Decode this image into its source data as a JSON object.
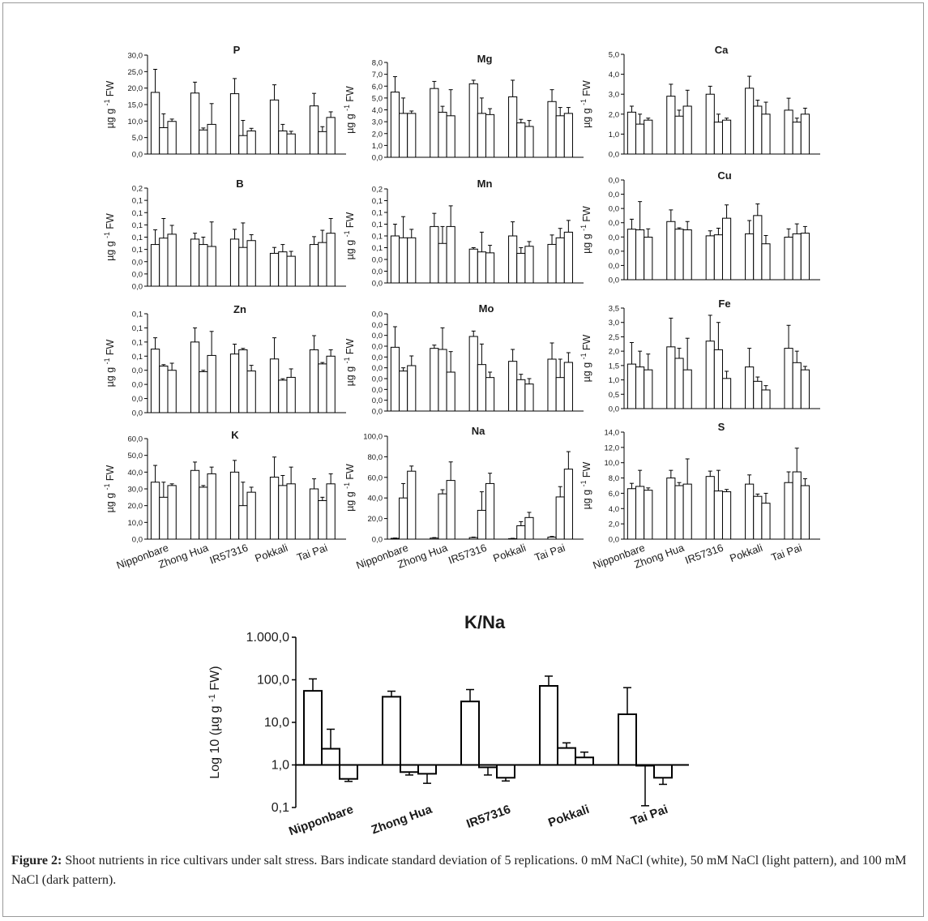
{
  "figure": {
    "caption_lead": "Figure 2:",
    "caption_text": " Shoot nutrients in rice cultivars under salt stress. Bars indicate standard deviation of 5 replications. 0 mM NaCl (white), 50 mM NaCl (light pattern), and 100 mM NaCl (dark pattern)."
  },
  "colors": {
    "bar_fill": "#ffffff",
    "bar_stroke": "#000000",
    "axis": "#000000"
  },
  "chart_data": [
    {
      "type": "bar",
      "title": "P",
      "ylabel": "µg g-1 FW",
      "ylim": [
        0,
        30
      ],
      "yticks": [
        "0,0",
        "5,0",
        "10,0",
        "15,0",
        "20,0",
        "25,0",
        "30,0"
      ],
      "categories": [
        "Nipponbare",
        "Zhong Hua",
        "IR57316",
        "Pokkali",
        "Tai Pai"
      ],
      "series": [
        {
          "values": [
            18.7,
            18.5,
            18.3,
            16.4,
            14.6
          ],
          "err": [
            7.0,
            3.3,
            4.6,
            4.6,
            3.8
          ]
        },
        {
          "values": [
            8.0,
            7.3,
            5.6,
            7.0,
            6.8
          ],
          "err": [
            4.2,
            0.6,
            4.6,
            2.0,
            1.5
          ]
        },
        {
          "values": [
            9.9,
            9.0,
            7.0,
            6.1,
            11.1
          ],
          "err": [
            0.7,
            6.3,
            0.8,
            0.8,
            1.7
          ]
        }
      ]
    },
    {
      "type": "bar",
      "title": "Mg",
      "ylabel": "µg g-1 FW",
      "ylim": [
        0,
        8
      ],
      "yticks": [
        "0,0",
        "1,0",
        "2,0",
        "3,0",
        "4,0",
        "5,0",
        "6,0",
        "7,0",
        "8,0"
      ],
      "categories": [
        "Nipponbare",
        "Zhong Hua",
        "IR57316",
        "Pokkali",
        "Tai Pai"
      ],
      "series": [
        {
          "values": [
            5.5,
            5.8,
            6.2,
            5.1,
            4.7
          ],
          "err": [
            1.3,
            0.6,
            0.3,
            1.4,
            1.0
          ]
        },
        {
          "values": [
            3.7,
            3.8,
            3.7,
            2.9,
            3.5
          ],
          "err": [
            1.3,
            0.5,
            1.3,
            0.3,
            0.7
          ]
        },
        {
          "values": [
            3.7,
            3.5,
            3.6,
            2.6,
            3.7
          ],
          "err": [
            0.2,
            2.2,
            0.5,
            0.5,
            0.5
          ]
        }
      ]
    },
    {
      "type": "bar",
      "title": "Ca",
      "ylabel": "µg g-1 FW",
      "ylim": [
        0,
        5
      ],
      "yticks": [
        "0,0",
        "1,0",
        "2,0",
        "3,0",
        "4,0",
        "5,0"
      ],
      "categories": [
        "Nipponbare",
        "Zhong Hua",
        "IR57316",
        "Pokkali",
        "Tai Pai"
      ],
      "series": [
        {
          "values": [
            2.1,
            2.9,
            3.0,
            3.3,
            2.2
          ],
          "err": [
            0.3,
            0.6,
            0.4,
            0.6,
            0.6
          ]
        },
        {
          "values": [
            1.5,
            1.9,
            1.6,
            2.4,
            1.6
          ],
          "err": [
            0.5,
            0.3,
            0.4,
            0.3,
            0.2
          ]
        },
        {
          "values": [
            1.7,
            2.4,
            1.7,
            2.0,
            2.0
          ],
          "err": [
            0.1,
            0.8,
            0.1,
            0.6,
            0.3
          ]
        }
      ]
    },
    {
      "type": "bar",
      "title": "B",
      "ylabel": "µg g-1 FW",
      "ylim": [
        0,
        0.2
      ],
      "yticks": [
        "0,0",
        "0,0",
        "0,0",
        "0,1",
        "0,1",
        "0,1",
        "0,1",
        "0,1",
        "0,2"
      ],
      "categories": [
        "Nipponbare",
        "Zhong Hua",
        "IR57316",
        "Pokkali",
        "Tai Pai"
      ],
      "series": [
        {
          "values": [
            0.085,
            0.096,
            0.096,
            0.067,
            0.085
          ],
          "err": [
            0.03,
            0.012,
            0.02,
            0.012,
            0.016
          ]
        },
        {
          "values": [
            0.098,
            0.085,
            0.079,
            0.07,
            0.089
          ],
          "err": [
            0.04,
            0.015,
            0.05,
            0.015,
            0.025
          ]
        },
        {
          "values": [
            0.106,
            0.081,
            0.093,
            0.061,
            0.108
          ],
          "err": [
            0.018,
            0.05,
            0.012,
            0.01,
            0.03
          ]
        }
      ]
    },
    {
      "type": "bar",
      "title": "Mn",
      "ylabel": "µg g-1 FW",
      "ylim": [
        0,
        0.2
      ],
      "yticks": [
        "0,0",
        "0,0",
        "0,0",
        "0,1",
        "0,1",
        "0,1",
        "0,1",
        "0,1",
        "0,2"
      ],
      "categories": [
        "Nipponbare",
        "Zhong Hua",
        "IR57316",
        "Pokkali",
        "Tai Pai"
      ],
      "series": [
        {
          "values": [
            0.1,
            0.12,
            0.072,
            0.1,
            0.082
          ],
          "err": [
            0.025,
            0.028,
            0.003,
            0.03,
            0.02
          ]
        },
        {
          "values": [
            0.096,
            0.084,
            0.066,
            0.063,
            0.096
          ],
          "err": [
            0.045,
            0.036,
            0.042,
            0.012,
            0.02
          ]
        },
        {
          "values": [
            0.096,
            0.12,
            0.064,
            0.078,
            0.108
          ],
          "err": [
            0.018,
            0.044,
            0.016,
            0.01,
            0.025
          ]
        }
      ]
    },
    {
      "type": "bar",
      "title": "Cu",
      "ylabel": "µg g-1 FW",
      "ylim": [
        0,
        0.03
      ],
      "yticks": [
        "0,0",
        "0,0",
        "0,0",
        "0,0",
        "0,0",
        "0,0",
        "0,0",
        "0,0"
      ],
      "categories": [
        "Nipponbare",
        "Zhong Hua",
        "IR57316",
        "Pokkali",
        "Tai Pai"
      ],
      "series": [
        {
          "values": [
            0.0152,
            0.0175,
            0.0132,
            0.0138,
            0.0128
          ],
          "err": [
            0.003,
            0.0035,
            0.0015,
            0.004,
            0.0025
          ]
        },
        {
          "values": [
            0.015,
            0.0152,
            0.0135,
            0.0193,
            0.0138
          ],
          "err": [
            0.0085,
            0.0004,
            0.002,
            0.0035,
            0.003
          ]
        },
        {
          "values": [
            0.0128,
            0.015,
            0.0185,
            0.0108,
            0.014
          ],
          "err": [
            0.0025,
            0.0025,
            0.004,
            0.0025,
            0.002
          ]
        }
      ]
    },
    {
      "type": "bar",
      "title": "Zn",
      "ylabel": "µg g-1 FW",
      "ylim": [
        0,
        0.14
      ],
      "yticks": [
        "0,0",
        "0,0",
        "0,0",
        "0,0",
        "0,1",
        "0,1",
        "0,1",
        "0,1"
      ],
      "categories": [
        "Nipponbare",
        "Zhong Hua",
        "IR57316",
        "Pokkali",
        "Tai Pai"
      ],
      "series": [
        {
          "values": [
            0.09,
            0.1,
            0.083,
            0.076,
            0.089
          ],
          "err": [
            0.016,
            0.02,
            0.014,
            0.03,
            0.02
          ]
        },
        {
          "values": [
            0.066,
            0.058,
            0.089,
            0.046,
            0.069
          ],
          "err": [
            0.002,
            0.002,
            0.002,
            0.002,
            0.002
          ]
        },
        {
          "values": [
            0.06,
            0.081,
            0.059,
            0.05,
            0.08
          ],
          "err": [
            0.01,
            0.034,
            0.008,
            0.012,
            0.009
          ]
        }
      ]
    },
    {
      "type": "bar",
      "title": "Mo",
      "ylabel": "µg g-1 FW",
      "ylim": [
        0,
        0.009
      ],
      "yticks": [
        "0,0",
        "0,0",
        "0,0",
        "0,0",
        "0,0",
        "0,0",
        "0,0",
        "0,0",
        "0,0",
        "0,0"
      ],
      "categories": [
        "Nipponbare",
        "Zhong Hua",
        "IR57316",
        "Pokkali",
        "Tai Pai"
      ],
      "series": [
        {
          "values": [
            0.0059,
            0.0058,
            0.0069,
            0.0046,
            0.0048
          ],
          "err": [
            0.0019,
            0.0003,
            0.0005,
            0.0011,
            0.0015
          ]
        },
        {
          "values": [
            0.0037,
            0.0057,
            0.0043,
            0.0029,
            0.0031
          ],
          "err": [
            0.0003,
            0.002,
            0.0019,
            0.0005,
            0.0017
          ]
        },
        {
          "values": [
            0.0042,
            0.0036,
            0.0031,
            0.0025,
            0.0045
          ],
          "err": [
            0.0009,
            0.0019,
            0.0005,
            0.0005,
            0.0009
          ]
        }
      ]
    },
    {
      "type": "bar",
      "title": "Fe",
      "ylabel": "µg g-1 FW",
      "ylim": [
        0,
        3.5
      ],
      "yticks": [
        "0,0",
        "0,5",
        "1,0",
        "1,5",
        "2,0",
        "2,5",
        "3,0",
        "3,5"
      ],
      "categories": [
        "Nipponbare",
        "Zhong Hua",
        "IR57316",
        "Pokkali",
        "Tai Pai"
      ],
      "series": [
        {
          "values": [
            1.55,
            2.15,
            2.35,
            1.45,
            2.1
          ],
          "err": [
            0.75,
            1.0,
            0.9,
            0.65,
            0.8
          ]
        },
        {
          "values": [
            1.45,
            1.75,
            2.05,
            0.95,
            1.6
          ],
          "err": [
            0.55,
            0.35,
            0.95,
            0.15,
            0.4
          ]
        },
        {
          "values": [
            1.35,
            1.35,
            1.05,
            0.65,
            1.35
          ],
          "err": [
            0.55,
            1.1,
            0.25,
            0.15,
            0.12
          ]
        }
      ]
    },
    {
      "type": "bar",
      "title": "K",
      "ylabel": "µg g-1 FW",
      "ylim": [
        0,
        60
      ],
      "yticks": [
        "0,0",
        "10,0",
        "20,0",
        "30,0",
        "40,0",
        "50,0",
        "60,0"
      ],
      "categories": [
        "Nipponbare",
        "Zhong Hua",
        "IR57316",
        "Pokkali",
        "Tai Pai"
      ],
      "series": [
        {
          "values": [
            34,
            41,
            40,
            37,
            30
          ],
          "err": [
            10,
            5,
            7,
            12,
            6
          ]
        },
        {
          "values": [
            25,
            31,
            20,
            32,
            23
          ],
          "err": [
            9,
            1,
            14,
            6,
            2
          ]
        },
        {
          "values": [
            32,
            39,
            28,
            33,
            33
          ],
          "err": [
            1,
            4,
            3,
            10,
            6
          ]
        }
      ]
    },
    {
      "type": "bar",
      "title": "Na",
      "ylabel": "µg g-1 FW",
      "ylim": [
        0,
        100
      ],
      "yticks": [
        "0,0",
        "20,0",
        "40,0",
        "60,0",
        "80,0",
        "100,0"
      ],
      "categories": [
        "Nipponbare",
        "Zhong Hua",
        "IR57316",
        "Pokkali",
        "Tai Pai"
      ],
      "series": [
        {
          "values": [
            0.8,
            1.0,
            1.5,
            0.5,
            2.0
          ],
          "err": [
            0.3,
            0.5,
            0.5,
            0.3,
            0.6
          ]
        },
        {
          "values": [
            40,
            44,
            28,
            13,
            41
          ],
          "err": [
            14,
            4,
            18,
            4,
            10
          ]
        },
        {
          "values": [
            66,
            57,
            54,
            21,
            68
          ],
          "err": [
            5,
            18,
            10,
            5,
            17
          ]
        }
      ]
    },
    {
      "type": "bar",
      "title": "S",
      "ylabel": "µg g-1 FW",
      "ylim": [
        0,
        14
      ],
      "yticks": [
        "0,0",
        "2,0",
        "4,0",
        "6,0",
        "8,0",
        "10,0",
        "12,0",
        "14,0"
      ],
      "categories": [
        "Nipponbare",
        "Zhong Hua",
        "IR57316",
        "Pokkali",
        "Tai Pai"
      ],
      "series": [
        {
          "values": [
            6.6,
            8.0,
            8.2,
            7.2,
            7.4
          ],
          "err": [
            0.7,
            1.0,
            0.7,
            1.2,
            1.4
          ]
        },
        {
          "values": [
            6.9,
            7.0,
            6.3,
            5.6,
            8.8
          ],
          "err": [
            2.1,
            0.4,
            2.7,
            0.3,
            3.1
          ]
        },
        {
          "values": [
            6.4,
            7.2,
            6.2,
            4.7,
            7.0
          ],
          "err": [
            0.3,
            3.3,
            0.3,
            1.3,
            0.9
          ]
        }
      ]
    },
    {
      "type": "bar",
      "title": "K/Na",
      "ylabel": "Log 10 (µg g-1 FW)",
      "yscale": "log",
      "ylim": [
        0.1,
        1000
      ],
      "yticks": [
        "0,1",
        "1,0",
        "10,0",
        "100,0",
        "1.000,0"
      ],
      "baseline": 1,
      "categories": [
        "Nipponbare",
        "Zhong Hua",
        "IR57316",
        "Pokkali",
        "Tai Pai"
      ],
      "series": [
        {
          "values": [
            55,
            40,
            31,
            72,
            15.5
          ],
          "err": [
            50,
            14,
            28,
            50,
            50
          ]
        },
        {
          "values": [
            2.4,
            0.68,
            0.88,
            2.5,
            0.96
          ],
          "err": [
            4.5,
            0.1,
            0.3,
            0.8,
            1.2
          ]
        },
        {
          "values": [
            0.47,
            0.62,
            0.5,
            1.5,
            0.5
          ],
          "err": [
            0.06,
            0.25,
            0.08,
            0.5,
            0.15
          ]
        }
      ]
    }
  ]
}
